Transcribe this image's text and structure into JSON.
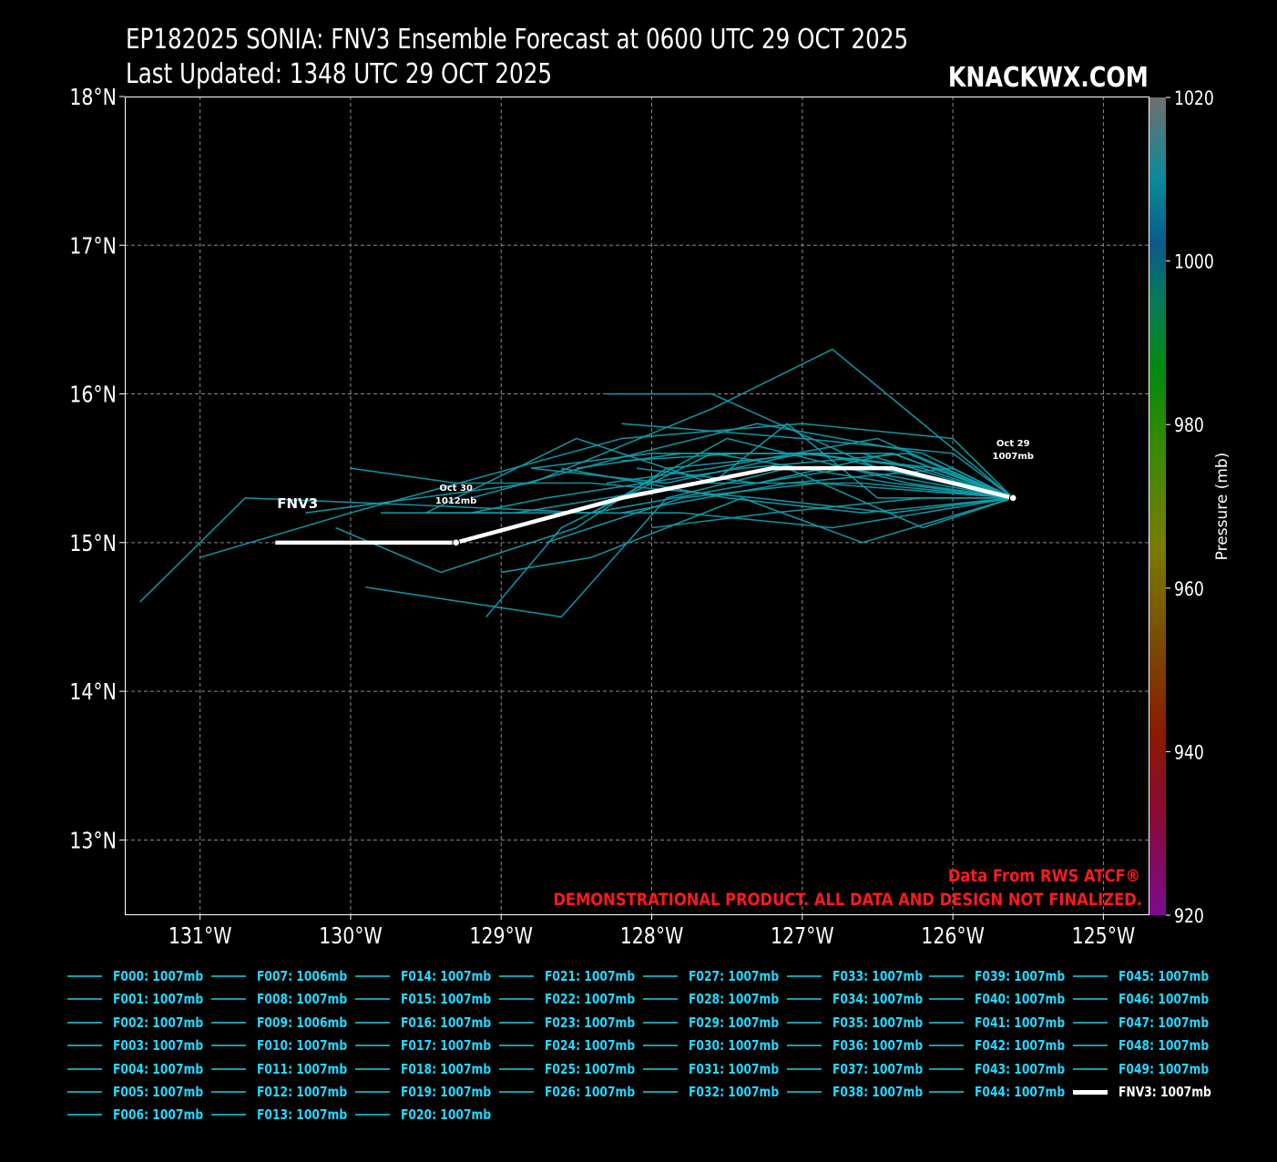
{
  "header": {
    "title_line1": "EP182025 SONIA: FNV3 Ensemble Forecast at 0600 UTC 29 OCT 2025",
    "title_line2": "Last Updated: 1348 UTC 29 OCT 2025",
    "brand": "KNACKWX.COM"
  },
  "chart_data": {
    "type": "line",
    "xlim": [
      -131.5,
      -124.7
    ],
    "ylim": [
      12.5,
      18.0
    ],
    "x_ticks": [
      -131,
      -130,
      -129,
      -128,
      -127,
      -126,
      -125
    ],
    "x_tick_labels": [
      "131°W",
      "130°W",
      "129°W",
      "128°W",
      "127°W",
      "126°W",
      "125°W"
    ],
    "y_ticks": [
      13,
      14,
      15,
      16,
      17,
      18
    ],
    "y_tick_labels": [
      "13°N",
      "14°N",
      "15°N",
      "16°N",
      "17°N",
      "18°N"
    ],
    "grid": true,
    "colorbar": {
      "label": "Pressure (mb)",
      "ticks": [
        "920",
        "940",
        "960",
        "980",
        "1000",
        "1020"
      ],
      "range": [
        920,
        1020
      ]
    },
    "colors": {
      "ensemble": "#0fa0ad",
      "main": "#ffffff",
      "legend_text": "#22d8ff",
      "credit": "#ff1a1a"
    },
    "main_track": {
      "name": "FNV3",
      "label": "FNV3",
      "points": [
        [
          -125.6,
          15.3
        ],
        [
          -126.4,
          15.5
        ],
        [
          -127.2,
          15.5
        ],
        [
          -128.2,
          15.3
        ],
        [
          -129.3,
          15.0
        ],
        [
          -130.5,
          15.0
        ]
      ]
    },
    "markers": [
      {
        "lon": -125.6,
        "lat": 15.3,
        "date": "Oct 29",
        "pressure": "1007mb"
      },
      {
        "lon": -129.3,
        "lat": 15.0,
        "date": "Oct 30",
        "pressure": "1012mb"
      }
    ],
    "ensemble_tracks": [
      [
        [
          -125.6,
          15.3
        ],
        [
          -126.2,
          15.5
        ],
        [
          -127.0,
          15.6
        ],
        [
          -127.9,
          15.4
        ],
        [
          -128.8,
          15.5
        ]
      ],
      [
        [
          -125.6,
          15.3
        ],
        [
          -126.8,
          16.3
        ],
        [
          -127.6,
          15.9
        ],
        [
          -128.8,
          15.4
        ],
        [
          -130.3,
          15.2
        ]
      ],
      [
        [
          -125.6,
          15.3
        ],
        [
          -126.4,
          15.6
        ],
        [
          -127.3,
          15.4
        ],
        [
          -128.4,
          15.2
        ],
        [
          -129.5,
          15.25
        ],
        [
          -130.7,
          15.3
        ],
        [
          -131.4,
          14.6
        ]
      ],
      [
        [
          -125.6,
          15.3
        ],
        [
          -126.0,
          15.7
        ],
        [
          -127.0,
          15.8
        ],
        [
          -128.2,
          15.7
        ],
        [
          -130.0,
          15.2
        ],
        [
          -131.0,
          14.9
        ]
      ],
      [
        [
          -125.6,
          15.3
        ],
        [
          -126.4,
          15.4
        ],
        [
          -127.6,
          15.6
        ],
        [
          -128.6,
          15.1
        ],
        [
          -129.1,
          14.5
        ]
      ],
      [
        [
          -125.6,
          15.3
        ],
        [
          -126.6,
          15.0
        ],
        [
          -127.4,
          15.3
        ],
        [
          -128.4,
          14.9
        ],
        [
          -129.0,
          14.8
        ]
      ],
      [
        [
          -125.6,
          15.3
        ],
        [
          -126.9,
          15.6
        ],
        [
          -127.9,
          15.5
        ],
        [
          -128.5,
          15.1
        ],
        [
          -129.4,
          14.8
        ],
        [
          -130.1,
          15.1
        ]
      ],
      [
        [
          -125.6,
          15.3
        ],
        [
          -126.2,
          15.1
        ],
        [
          -127.1,
          15.5
        ],
        [
          -127.9,
          15.3
        ],
        [
          -128.6,
          14.5
        ],
        [
          -129.9,
          14.7
        ]
      ],
      [
        [
          -125.6,
          15.3
        ],
        [
          -126.5,
          15.5
        ],
        [
          -127.6,
          16.0
        ],
        [
          -128.3,
          16.0
        ]
      ],
      [
        [
          -125.6,
          15.3
        ],
        [
          -126.5,
          15.3
        ],
        [
          -127.1,
          15.8
        ],
        [
          -127.6,
          15.4
        ],
        [
          -128.5,
          15.7
        ],
        [
          -129.5,
          15.2
        ]
      ],
      [
        [
          -125.6,
          15.3
        ],
        [
          -126.3,
          15.6
        ],
        [
          -127.4,
          15.5
        ],
        [
          -128.7,
          15.3
        ],
        [
          -129.2,
          15.2
        ]
      ],
      [
        [
          -125.6,
          15.3
        ],
        [
          -126.0,
          15.6
        ],
        [
          -127.0,
          15.7
        ],
        [
          -128.2,
          15.8
        ]
      ],
      [
        [
          -125.6,
          15.3
        ],
        [
          -126.6,
          15.4
        ],
        [
          -127.7,
          15.4
        ],
        [
          -128.9,
          15.2
        ],
        [
          -129.8,
          15.2
        ]
      ],
      [
        [
          -125.6,
          15.3
        ],
        [
          -126.4,
          15.2
        ],
        [
          -127.3,
          15.3
        ],
        [
          -128.4,
          15.4
        ],
        [
          -129.3,
          15.4
        ],
        [
          -130.0,
          15.5
        ]
      ],
      [
        [
          -125.6,
          15.3
        ],
        [
          -126.1,
          15.5
        ],
        [
          -127.0,
          15.6
        ],
        [
          -128.0,
          15.6
        ],
        [
          -128.8,
          15.5
        ]
      ],
      [
        [
          -125.6,
          15.3
        ],
        [
          -126.7,
          15.5
        ],
        [
          -127.3,
          15.4
        ],
        [
          -128.1,
          15.5
        ]
      ],
      [
        [
          -125.6,
          15.3
        ],
        [
          -126.8,
          15.1
        ],
        [
          -127.8,
          15.2
        ],
        [
          -128.6,
          15.2
        ],
        [
          -129.5,
          15.2
        ]
      ],
      [
        [
          -125.6,
          15.3
        ],
        [
          -126.3,
          15.4
        ],
        [
          -127.5,
          15.7
        ],
        [
          -128.4,
          15.2
        ]
      ],
      [
        [
          -125.6,
          15.3
        ],
        [
          -126.9,
          15.4
        ],
        [
          -127.8,
          15.3
        ],
        [
          -128.7,
          15.0
        ]
      ],
      [
        [
          -125.6,
          15.3
        ],
        [
          -126.2,
          15.6
        ],
        [
          -127.3,
          15.8
        ],
        [
          -128.1,
          15.6
        ],
        [
          -129.2,
          15.3
        ]
      ],
      [
        [
          -125.6,
          15.3
        ],
        [
          -126.5,
          15.7
        ],
        [
          -127.6,
          15.5
        ],
        [
          -128.3,
          15.4
        ]
      ],
      [
        [
          -125.6,
          15.3
        ],
        [
          -126.0,
          15.5
        ],
        [
          -127.1,
          15.4
        ],
        [
          -128.2,
          15.2
        ]
      ],
      [
        [
          -125.6,
          15.3
        ],
        [
          -126.6,
          15.6
        ],
        [
          -127.4,
          15.6
        ],
        [
          -128.2,
          15.55
        ]
      ],
      [
        [
          -125.6,
          15.3
        ],
        [
          -126.2,
          15.3
        ],
        [
          -127.2,
          15.2
        ],
        [
          -128.0,
          15.1
        ]
      ],
      [
        [
          -125.6,
          15.3
        ],
        [
          -126.4,
          15.6
        ],
        [
          -127.8,
          15.6
        ],
        [
          -128.5,
          15.5
        ]
      ],
      [
        [
          -125.6,
          15.3
        ],
        [
          -126.6,
          15.2
        ],
        [
          -127.5,
          15.3
        ],
        [
          -128.6,
          15.5
        ]
      ]
    ],
    "legend_entries": [
      "F000: 1007mb",
      "F001: 1007mb",
      "F002: 1007mb",
      "F003: 1007mb",
      "F004: 1007mb",
      "F005: 1007mb",
      "F006: 1007mb",
      "F007: 1006mb",
      "F008: 1007mb",
      "F009: 1006mb",
      "F010: 1007mb",
      "F011: 1007mb",
      "F012: 1007mb",
      "F013: 1007mb",
      "F014: 1007mb",
      "F015: 1007mb",
      "F016: 1007mb",
      "F017: 1007mb",
      "F018: 1007mb",
      "F019: 1007mb",
      "F020: 1007mb",
      "F021: 1007mb",
      "F022: 1007mb",
      "F023: 1007mb",
      "F024: 1007mb",
      "F025: 1007mb",
      "F026: 1007mb",
      "F027: 1007mb",
      "F028: 1007mb",
      "F029: 1007mb",
      "F030: 1007mb",
      "F031: 1007mb",
      "F032: 1007mb",
      "F033: 1007mb",
      "F034: 1007mb",
      "F035: 1007mb",
      "F036: 1007mb",
      "F037: 1007mb",
      "F038: 1007mb",
      "F039: 1007mb",
      "F040: 1007mb",
      "F041: 1007mb",
      "F042: 1007mb",
      "F043: 1007mb",
      "F044: 1007mb",
      "F045: 1007mb",
      "F046: 1007mb",
      "F047: 1007mb",
      "F048: 1007mb",
      "F049: 1007mb",
      "FNV3: 1007mb"
    ],
    "credit_line1": "Data From RWS ATCF®",
    "credit_line2": "DEMONSTRATIONAL PRODUCT. ALL DATA AND DESIGN NOT FINALIZED."
  }
}
